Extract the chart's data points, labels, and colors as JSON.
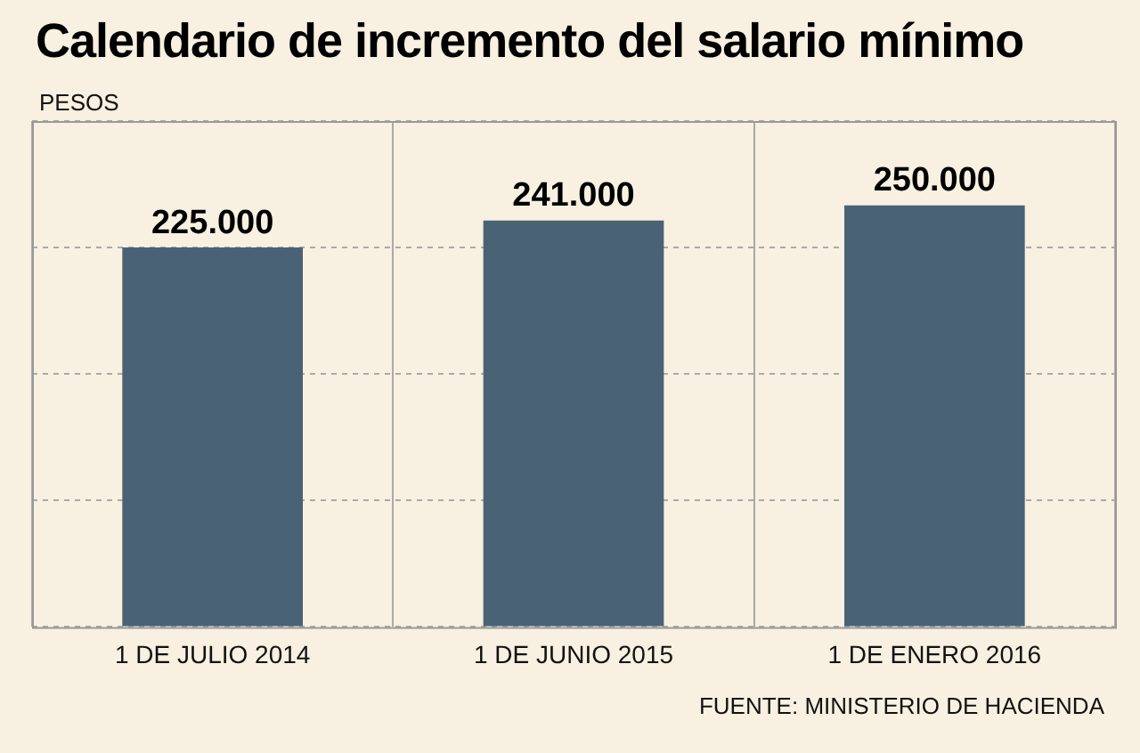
{
  "chart_data": {
    "type": "bar",
    "title": "Calendario de incremento del salario mínimo",
    "subtitle": "PESOS",
    "categories": [
      "1 DE JULIO 2014",
      "1 DE JUNIO 2015",
      "1 DE ENERO 2016"
    ],
    "values": [
      225000,
      241000,
      250000
    ],
    "value_labels": [
      "225.000",
      "241.000",
      "250.000"
    ],
    "color": "#4a6275",
    "ylim": [
      0,
      300000
    ],
    "yticks": [
      {
        "value": 0,
        "label": null
      },
      {
        "value": 75000,
        "label": null
      },
      {
        "value": 150000,
        "label": null
      },
      {
        "value": 225000,
        "label": null
      },
      {
        "value": 300000,
        "label": null
      }
    ],
    "tick_labels": "x",
    "grid": true,
    "annotations": [
      "FUENTE: MINISTERIO DE HACIENDA"
    ]
  }
}
